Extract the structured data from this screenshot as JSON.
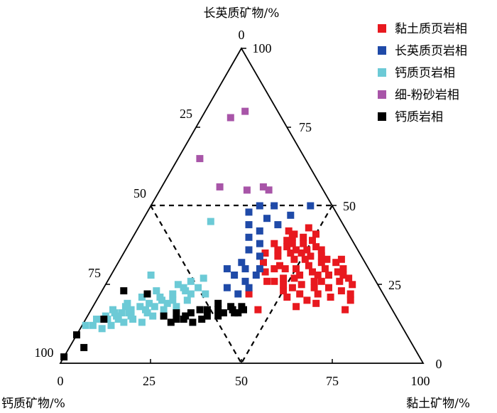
{
  "chart_data": {
    "type": "scatter",
    "subtype": "ternary",
    "axes": {
      "top": {
        "label": "长英质矿物/%",
        "ticks": [
          "0",
          "25",
          "50",
          "75",
          "100"
        ]
      },
      "left": {
        "label": "钙质矿物/%",
        "ticks": [
          "0",
          "25",
          "50",
          "75",
          "100"
        ]
      },
      "right": {
        "label": "黏土矿物/%",
        "ticks": [
          "0",
          "25",
          "50",
          "75",
          "100"
        ]
      }
    },
    "bottom_ticks": [
      "0",
      "25",
      "50",
      "75",
      "100"
    ],
    "right_ticks": [
      "50",
      "25",
      "0"
    ],
    "top_tick": "100",
    "boundaries": "dashed lines at 50% of each component",
    "legend_position": "top-right",
    "series": [
      {
        "name": "黏土质页岩相",
        "color": "#e8191f",
        "points": [
          {
            "quartz": 32,
            "clay": 56,
            "calcite": 12
          },
          {
            "quartz": 30,
            "clay": 58,
            "calcite": 12
          },
          {
            "quartz": 28,
            "clay": 60,
            "calcite": 12
          },
          {
            "quartz": 34,
            "clay": 52,
            "calcite": 14
          },
          {
            "quartz": 36,
            "clay": 50,
            "calcite": 14
          },
          {
            "quartz": 38,
            "clay": 48,
            "calcite": 14
          },
          {
            "quartz": 40,
            "clay": 47,
            "calcite": 13
          },
          {
            "quartz": 26,
            "clay": 57,
            "calcite": 17
          },
          {
            "quartz": 24,
            "clay": 58,
            "calcite": 18
          },
          {
            "quartz": 22,
            "clay": 55,
            "calcite": 23
          },
          {
            "quartz": 30,
            "clay": 50,
            "calcite": 20
          },
          {
            "quartz": 33,
            "clay": 48,
            "calcite": 19
          },
          {
            "quartz": 35,
            "clay": 46,
            "calcite": 19
          },
          {
            "quartz": 28,
            "clay": 52,
            "calcite": 20
          },
          {
            "quartz": 25,
            "clay": 54,
            "calcite": 21
          },
          {
            "quartz": 27,
            "clay": 48,
            "calcite": 25
          },
          {
            "quartz": 31,
            "clay": 45,
            "calcite": 24
          },
          {
            "quartz": 34,
            "clay": 43,
            "calcite": 23
          },
          {
            "quartz": 37,
            "clay": 44,
            "calcite": 19
          },
          {
            "quartz": 39,
            "clay": 43,
            "calcite": 18
          },
          {
            "quartz": 41,
            "clay": 44,
            "calcite": 15
          },
          {
            "quartz": 36,
            "clay": 54,
            "calcite": 10
          },
          {
            "quartz": 33,
            "clay": 57,
            "calcite": 10
          },
          {
            "quartz": 29,
            "clay": 62,
            "calcite": 9
          },
          {
            "quartz": 26,
            "clay": 64,
            "calcite": 10
          },
          {
            "quartz": 24,
            "clay": 62,
            "calcite": 14
          },
          {
            "quartz": 22,
            "clay": 60,
            "calcite": 18
          },
          {
            "quartz": 20,
            "clay": 58,
            "calcite": 22
          },
          {
            "quartz": 23,
            "clay": 50,
            "calcite": 27
          },
          {
            "quartz": 26,
            "clay": 46,
            "calcite": 28
          },
          {
            "quartz": 29,
            "clay": 42,
            "calcite": 29
          },
          {
            "quartz": 32,
            "clay": 40,
            "calcite": 28
          },
          {
            "quartz": 35,
            "clay": 39,
            "calcite": 26
          },
          {
            "quartz": 38,
            "clay": 40,
            "calcite": 22
          },
          {
            "quartz": 31,
            "clay": 53,
            "calcite": 16
          },
          {
            "quartz": 29,
            "clay": 55,
            "calcite": 16
          },
          {
            "quartz": 27,
            "clay": 51,
            "calcite": 22
          },
          {
            "quartz": 35,
            "clay": 49,
            "calcite": 16
          },
          {
            "quartz": 37,
            "clay": 52,
            "calcite": 11
          },
          {
            "quartz": 39,
            "clay": 50,
            "calcite": 11
          },
          {
            "quartz": 32,
            "clay": 60,
            "calcite": 8
          },
          {
            "quartz": 27,
            "clay": 66,
            "calcite": 7
          },
          {
            "quartz": 25,
            "clay": 68,
            "calcite": 7
          },
          {
            "quartz": 23,
            "clay": 66,
            "calcite": 11
          },
          {
            "quartz": 21,
            "clay": 64,
            "calcite": 15
          },
          {
            "quartz": 19,
            "clay": 61,
            "calcite": 20
          },
          {
            "quartz": 18,
            "clay": 56,
            "calcite": 26
          },
          {
            "quartz": 21,
            "clay": 52,
            "calcite": 27
          },
          {
            "quartz": 30,
            "clay": 47,
            "calcite": 23
          },
          {
            "quartz": 33,
            "clay": 51,
            "calcite": 16
          },
          {
            "quartz": 36,
            "clay": 47,
            "calcite": 17
          },
          {
            "quartz": 34,
            "clay": 55,
            "calcite": 11
          },
          {
            "quartz": 24,
            "clay": 52,
            "calcite": 24
          },
          {
            "quartz": 28,
            "clay": 57,
            "calcite": 15
          },
          {
            "quartz": 41,
            "clay": 50,
            "calcite": 9
          },
          {
            "quartz": 43,
            "clay": 47,
            "calcite": 10
          },
          {
            "quartz": 30,
            "clay": 63,
            "calcite": 7
          },
          {
            "quartz": 28,
            "clay": 64,
            "calcite": 8
          },
          {
            "quartz": 26,
            "clay": 59,
            "calcite": 15
          },
          {
            "quartz": 25,
            "clay": 49,
            "calcite": 26
          },
          {
            "quartz": 40,
            "clay": 44,
            "calcite": 16
          },
          {
            "quartz": 42,
            "clay": 42,
            "calcite": 16
          },
          {
            "quartz": 38,
            "clay": 45,
            "calcite": 17
          },
          {
            "quartz": 36,
            "clay": 42,
            "calcite": 22
          },
          {
            "quartz": 22,
            "clay": 69,
            "calcite": 9
          },
          {
            "quartz": 20,
            "clay": 70,
            "calcite": 10
          },
          {
            "quartz": 17,
            "clay": 70,
            "calcite": 13
          },
          {
            "quartz": 22,
            "clay": 41,
            "calcite": 37
          },
          {
            "quartz": 17,
            "clay": 46,
            "calcite": 37
          },
          {
            "quartz": 33,
            "clay": 61,
            "calcite": 6
          },
          {
            "quartz": 26,
            "clay": 44,
            "calcite": 30
          },
          {
            "quartz": 30,
            "clay": 44,
            "calcite": 26
          }
        ]
      },
      {
        "name": "长英质页岩相",
        "color": "#1f4aa8",
        "points": [
          {
            "quartz": 50,
            "clay": 34,
            "calcite": 16
          },
          {
            "quartz": 50,
            "clay": 44,
            "calcite": 6
          },
          {
            "quartz": 50,
            "clay": 30,
            "calcite": 20
          },
          {
            "quartz": 48,
            "clay": 28,
            "calcite": 24
          },
          {
            "quartz": 46,
            "clay": 34,
            "calcite": 20
          },
          {
            "quartz": 44,
            "clay": 30,
            "calcite": 26
          },
          {
            "quartz": 42,
            "clay": 34,
            "calcite": 24
          },
          {
            "quartz": 40,
            "clay": 32,
            "calcite": 28
          },
          {
            "quartz": 38,
            "clay": 36,
            "calcite": 26
          },
          {
            "quartz": 36,
            "clay": 34,
            "calcite": 30
          },
          {
            "quartz": 34,
            "clay": 38,
            "calcite": 28
          },
          {
            "quartz": 30,
            "clay": 36,
            "calcite": 34
          },
          {
            "quartz": 26,
            "clay": 38,
            "calcite": 36
          },
          {
            "quartz": 24,
            "clay": 40,
            "calcite": 36
          },
          {
            "quartz": 28,
            "clay": 34,
            "calcite": 38
          },
          {
            "quartz": 32,
            "clay": 34,
            "calcite": 34
          },
          {
            "quartz": 28,
            "clay": 40,
            "calcite": 32
          },
          {
            "quartz": 47,
            "clay": 40,
            "calcite": 13
          },
          {
            "quartz": 44,
            "clay": 38,
            "calcite": 18
          },
          {
            "quartz": 30,
            "clay": 40,
            "calcite": 30
          },
          {
            "quartz": 22,
            "clay": 38,
            "calcite": 40
          },
          {
            "quartz": 24,
            "clay": 34,
            "calcite": 42
          },
          {
            "quartz": 30,
            "clay": 31,
            "calcite": 39
          }
        ]
      },
      {
        "name": "钙质页岩相",
        "color": "#6ccad6",
        "points": [
          {
            "quartz": 45,
            "clay": 19,
            "calcite": 36
          },
          {
            "quartz": 28,
            "clay": 11,
            "calcite": 61
          },
          {
            "quartz": 24,
            "clay": 22,
            "calcite": 54
          },
          {
            "quartz": 22,
            "clay": 25,
            "calcite": 53
          },
          {
            "quartz": 22,
            "clay": 20,
            "calcite": 58
          },
          {
            "quartz": 20,
            "clay": 18,
            "calcite": 62
          },
          {
            "quartz": 19,
            "clay": 15,
            "calcite": 66
          },
          {
            "quartz": 18,
            "clay": 13,
            "calcite": 69
          },
          {
            "quartz": 17,
            "clay": 11,
            "calcite": 72
          },
          {
            "quartz": 16,
            "clay": 9,
            "calcite": 75
          },
          {
            "quartz": 16,
            "clay": 7,
            "calcite": 77
          },
          {
            "quartz": 17,
            "clay": 6,
            "calcite": 77
          },
          {
            "quartz": 15,
            "clay": 12,
            "calcite": 73
          },
          {
            "quartz": 14,
            "clay": 13,
            "calcite": 73
          },
          {
            "quartz": 13,
            "clay": 11,
            "calcite": 76
          },
          {
            "quartz": 14,
            "clay": 9,
            "calcite": 77
          },
          {
            "quartz": 15,
            "clay": 5,
            "calcite": 80
          },
          {
            "quartz": 14,
            "clay": 3,
            "calcite": 83
          },
          {
            "quartz": 19,
            "clay": 9,
            "calcite": 72
          },
          {
            "quartz": 21,
            "clay": 12,
            "calcite": 67
          },
          {
            "quartz": 23,
            "clay": 15,
            "calcite": 62
          },
          {
            "quartz": 25,
            "clay": 20,
            "calcite": 55
          },
          {
            "quartz": 26,
            "clay": 23,
            "calcite": 51
          },
          {
            "quartz": 27,
            "clay": 26,
            "calcite": 47
          },
          {
            "quartz": 23,
            "clay": 23,
            "calcite": 54
          },
          {
            "quartz": 20,
            "clay": 21,
            "calcite": 59
          },
          {
            "quartz": 18,
            "clay": 17,
            "calcite": 65
          },
          {
            "quartz": 17,
            "clay": 15,
            "calcite": 68
          },
          {
            "quartz": 16,
            "clay": 11,
            "calcite": 73
          },
          {
            "quartz": 15,
            "clay": 8,
            "calcite": 77
          },
          {
            "quartz": 12,
            "clay": 8,
            "calcite": 80
          },
          {
            "quartz": 11,
            "clay": 6,
            "calcite": 83
          },
          {
            "quartz": 12,
            "clay": 3,
            "calcite": 85
          },
          {
            "quartz": 21,
            "clay": 17,
            "calcite": 62
          },
          {
            "quartz": 19,
            "clay": 20,
            "calcite": 61
          },
          {
            "quartz": 18,
            "clay": 23,
            "calcite": 59
          },
          {
            "quartz": 20,
            "clay": 25,
            "calcite": 55
          },
          {
            "quartz": 22,
            "clay": 29,
            "calcite": 49
          },
          {
            "quartz": 24,
            "clay": 26,
            "calcite": 50
          },
          {
            "quartz": 17,
            "clay": 20,
            "calcite": 63
          },
          {
            "quartz": 13,
            "clay": 16,
            "calcite": 71
          },
          {
            "quartz": 16,
            "clay": 16,
            "calcite": 68
          },
          {
            "quartz": 15,
            "clay": 18,
            "calcite": 67
          },
          {
            "quartz": 18,
            "clay": 9,
            "calcite": 73
          },
          {
            "quartz": 14,
            "clay": 6,
            "calcite": 80
          },
          {
            "quartz": 12,
            "clay": 1,
            "calcite": 87
          }
        ]
      },
      {
        "name": "细-粉砂岩相",
        "color": "#a855a8",
        "points": [
          {
            "quartz": 80,
            "clay": 11,
            "calcite": 9
          },
          {
            "quartz": 78,
            "clay": 8,
            "calcite": 14
          },
          {
            "quartz": 65,
            "clay": 6,
            "calcite": 29
          },
          {
            "quartz": 56,
            "clay": 16,
            "calcite": 28
          },
          {
            "quartz": 55,
            "clay": 24,
            "calcite": 21
          },
          {
            "quartz": 56,
            "clay": 28,
            "calcite": 16
          },
          {
            "quartz": 55,
            "clay": 30,
            "calcite": 15
          }
        ]
      },
      {
        "name": "钙质岩相",
        "color": "#000000",
        "points": [
          {
            "quartz": 2,
            "clay": 0,
            "calcite": 98
          },
          {
            "quartz": 5,
            "clay": 4,
            "calcite": 91
          },
          {
            "quartz": 9,
            "clay": 0,
            "calcite": 91
          },
          {
            "quartz": 14,
            "clay": 5,
            "calcite": 81
          },
          {
            "quartz": 23,
            "clay": 6,
            "calcite": 71
          },
          {
            "quartz": 22,
            "clay": 13,
            "calcite": 65
          },
          {
            "quartz": 15,
            "clay": 21,
            "calcite": 64
          },
          {
            "quartz": 16,
            "clay": 24,
            "calcite": 60
          },
          {
            "quartz": 15,
            "clay": 27,
            "calcite": 58
          },
          {
            "quartz": 17,
            "clay": 30,
            "calcite": 53
          },
          {
            "quartz": 16,
            "clay": 28,
            "calcite": 56
          },
          {
            "quartz": 14,
            "clay": 25,
            "calcite": 61
          },
          {
            "quartz": 13,
            "clay": 24,
            "calcite": 63
          },
          {
            "quartz": 14,
            "clay": 27,
            "calcite": 59
          },
          {
            "quartz": 13,
            "clay": 30,
            "calcite": 57
          },
          {
            "quartz": 15,
            "clay": 33,
            "calcite": 52
          },
          {
            "quartz": 16,
            "clay": 37,
            "calcite": 47
          },
          {
            "quartz": 17,
            "clay": 39,
            "calcite": 44
          },
          {
            "quartz": 17,
            "clay": 35,
            "calcite": 48
          },
          {
            "quartz": 19,
            "clay": 34,
            "calcite": 47
          },
          {
            "quartz": 18,
            "clay": 38,
            "calcite": 44
          },
          {
            "quartz": 16,
            "clay": 40,
            "calcite": 44
          },
          {
            "quartz": 15,
            "clay": 36,
            "calcite": 49
          },
          {
            "quartz": 14,
            "clay": 32,
            "calcite": 54
          },
          {
            "quartz": 17,
            "clay": 32,
            "calcite": 51
          },
          {
            "quartz": 18,
            "clay": 41,
            "calcite": 41
          },
          {
            "quartz": 16,
            "clay": 41,
            "calcite": 43
          },
          {
            "quartz": 17,
            "clay": 42,
            "calcite": 41
          }
        ]
      }
    ]
  }
}
